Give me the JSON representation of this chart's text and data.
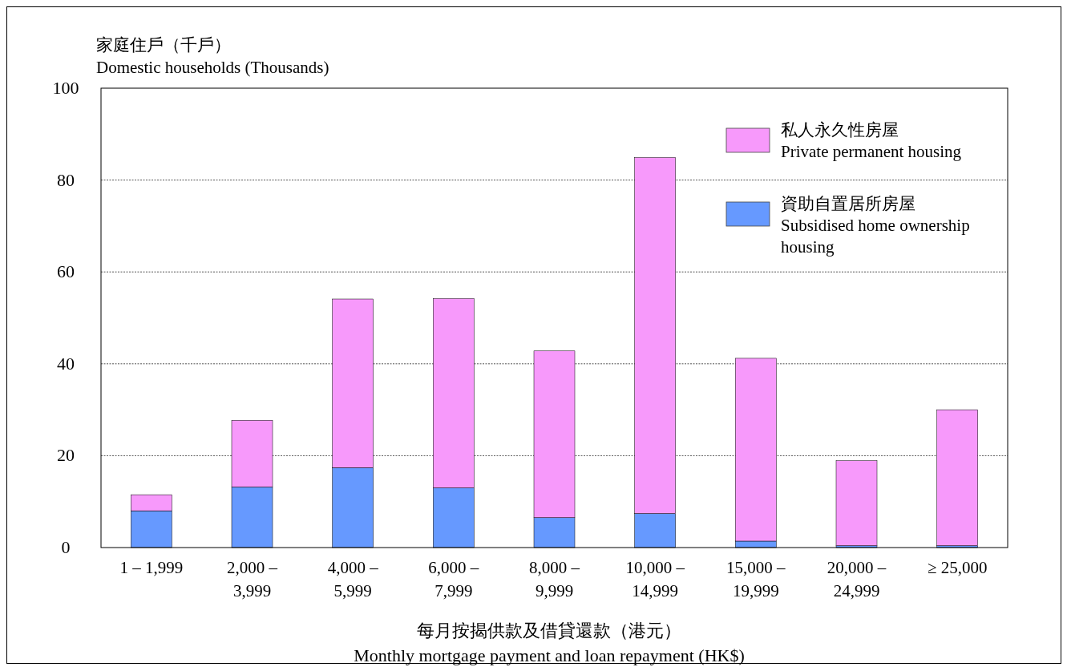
{
  "chart_data": {
    "type": "bar",
    "stacked": true,
    "xlabel": "每月按揭供款及借貸還款（港元）\nMonthly mortgage payment and loan repayment (HK$)",
    "ylabel": "家庭住戶（千戶）\nDomestic households (Thousands)",
    "categories": [
      "1 – 1,999",
      "2,000 – 3,999",
      "4,000 – 5,999",
      "6,000 – 7,999",
      "8,000 – 9,999",
      "10,000 – 14,999",
      "15,000 – 19,999",
      "20,000 – 24,999",
      "≥ 25,000"
    ],
    "series": [
      {
        "name": "資助自置居所房屋\nSubsidised home ownership housing",
        "color": "#6699ff",
        "values": [
          8.0,
          13.2,
          17.4,
          13.0,
          6.5,
          7.4,
          1.4,
          0.4,
          0.4
        ]
      },
      {
        "name": "私人永久性房屋\nPrivate permanent housing",
        "color": "#f799fb",
        "values": [
          3.5,
          14.5,
          36.7,
          41.2,
          36.3,
          77.5,
          39.8,
          18.5,
          29.6
        ]
      }
    ],
    "ylim": [
      0,
      100
    ],
    "yticks": [
      0,
      20,
      40,
      60,
      80,
      100
    ],
    "grid": "y",
    "legend": "top right"
  }
}
